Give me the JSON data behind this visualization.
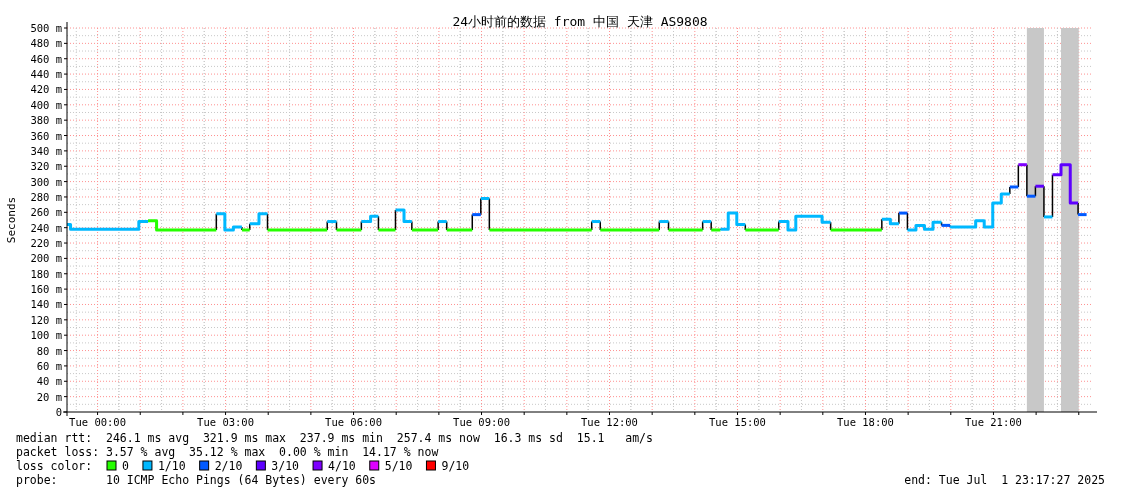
{
  "chart_data": {
    "type": "step",
    "title": "24小时前的数据 from 中国 天津 AS9808",
    "ylabel": "Seconds",
    "legend_title": "loss color:",
    "legend": "bottom",
    "grid": true,
    "xlim": [
      "2025-06-30T23:17",
      "2025-07-01T23:20"
    ],
    "ylim": [
      0,
      500
    ],
    "xticks": [
      {
        "value": "2025-07-01T00:00",
        "label": "Tue 00:00"
      },
      {
        "value": "2025-07-01T01:00",
        "label": null
      },
      {
        "value": "2025-07-01T02:00",
        "label": null
      },
      {
        "value": "2025-07-01T03:00",
        "label": "Tue 03:00"
      },
      {
        "value": "2025-07-01T04:00",
        "label": null
      },
      {
        "value": "2025-07-01T05:00",
        "label": null
      },
      {
        "value": "2025-07-01T06:00",
        "label": "Tue 06:00"
      },
      {
        "value": "2025-07-01T07:00",
        "label": null
      },
      {
        "value": "2025-07-01T08:00",
        "label": null
      },
      {
        "value": "2025-07-01T09:00",
        "label": "Tue 09:00"
      },
      {
        "value": "2025-07-01T10:00",
        "label": null
      },
      {
        "value": "2025-07-01T11:00",
        "label": null
      },
      {
        "value": "2025-07-01T12:00",
        "label": "Tue 12:00"
      },
      {
        "value": "2025-07-01T13:00",
        "label": null
      },
      {
        "value": "2025-07-01T14:00",
        "label": null
      },
      {
        "value": "2025-07-01T15:00",
        "label": "Tue 15:00"
      },
      {
        "value": "2025-07-01T16:00",
        "label": null
      },
      {
        "value": "2025-07-01T17:00",
        "label": null
      },
      {
        "value": "2025-07-01T18:00",
        "label": "Tue 18:00"
      },
      {
        "value": "2025-07-01T19:00",
        "label": null
      },
      {
        "value": "2025-07-01T20:00",
        "label": null
      },
      {
        "value": "2025-07-01T21:00",
        "label": "Tue 21:00"
      },
      {
        "value": "2025-07-01T22:00",
        "label": null
      },
      {
        "value": "2025-07-01T23:00",
        "label": null
      }
    ],
    "yticks": [
      0,
      {
        "value": 20,
        "label": "20 m"
      },
      {
        "value": 40,
        "label": "40 m"
      },
      {
        "value": 60,
        "label": "60 m"
      },
      {
        "value": 80,
        "label": "80 m"
      },
      {
        "value": 100,
        "label": "100 m"
      },
      {
        "value": 120,
        "label": "120 m"
      },
      {
        "value": 140,
        "label": "140 m"
      },
      {
        "value": 160,
        "label": "160 m"
      },
      {
        "value": 180,
        "label": "180 m"
      },
      {
        "value": 200,
        "label": "200 m"
      },
      {
        "value": 220,
        "label": "220 m"
      },
      {
        "value": 240,
        "label": "240 m"
      },
      {
        "value": 260,
        "label": "260 m"
      },
      {
        "value": 280,
        "label": "280 m"
      },
      {
        "value": 300,
        "label": "300 m"
      },
      {
        "value": 320,
        "label": "320 m"
      },
      {
        "value": 340,
        "label": "340 m"
      },
      {
        "value": 360,
        "label": "360 m"
      },
      {
        "value": 380,
        "label": "380 m"
      },
      {
        "value": 400,
        "label": "400 m"
      },
      {
        "value": 420,
        "label": "420 m"
      },
      {
        "value": 440,
        "label": "440 m"
      },
      {
        "value": 460,
        "label": "460 m"
      },
      {
        "value": 480,
        "label": "480 m"
      },
      {
        "value": 500,
        "label": "500 m"
      }
    ],
    "bands": [
      {
        "axis": "x",
        "from": "2025-07-01T21:47",
        "to": "2025-07-01T22:11",
        "color": "#c8c8c8"
      },
      {
        "axis": "x",
        "from": "2025-07-01T22:35",
        "to": "2025-07-01T23:00",
        "color": "#c8c8c8"
      }
    ],
    "series": [
      {
        "name": "0",
        "color": "#26ff00"
      },
      {
        "name": "1/10",
        "color": "#00b8ff"
      },
      {
        "name": "2/10",
        "color": "#0059ff"
      },
      {
        "name": "3/10",
        "color": "#5e00ff"
      },
      {
        "name": "4/10",
        "color": "#7e00ff"
      },
      {
        "name": "5/10",
        "color": "#dd00ff"
      },
      {
        "name": "9/10",
        "color": "#ff0000"
      },
      {
        "color": "#00b8ff",
        "x": [
          "2025-06-30T23:17",
          "2025-06-30T23:22",
          "2025-07-01T00:58",
          "2025-07-01T01:11"
        ],
        "values": [
          244,
          238,
          248,
          248
        ]
      },
      {
        "color": "#26ff00",
        "x": [
          "2025-07-01T01:11",
          "2025-07-01T01:23",
          "2025-07-01T02:47"
        ],
        "values": [
          249,
          237,
          237
        ]
      },
      {
        "color": "#00b8ff",
        "x": [
          "2025-07-01T02:47",
          "2025-07-01T02:59",
          "2025-07-01T03:11",
          "2025-07-01T03:23"
        ],
        "values": [
          258,
          237,
          241,
          241
        ]
      },
      {
        "color": "#26ff00",
        "x": [
          "2025-07-01T03:23",
          "2025-07-01T03:34"
        ],
        "values": [
          237,
          237
        ]
      },
      {
        "color": "#00b8ff",
        "x": [
          "2025-07-01T03:34",
          "2025-07-01T03:47",
          "2025-07-01T03:59"
        ],
        "values": [
          245,
          258,
          258
        ]
      },
      {
        "color": "#26ff00",
        "x": [
          "2025-07-01T03:59",
          "2025-07-01T05:23"
        ],
        "values": [
          237,
          237
        ]
      },
      {
        "color": "#00b8ff",
        "x": [
          "2025-07-01T05:23",
          "2025-07-01T05:36"
        ],
        "values": [
          248,
          248
        ]
      },
      {
        "color": "#26ff00",
        "x": [
          "2025-07-01T05:36",
          "2025-07-01T06:11"
        ],
        "values": [
          237,
          237
        ]
      },
      {
        "color": "#00b8ff",
        "x": [
          "2025-07-01T06:11",
          "2025-07-01T06:24",
          "2025-07-01T06:35"
        ],
        "values": [
          248,
          255,
          255
        ]
      },
      {
        "color": "#26ff00",
        "x": [
          "2025-07-01T06:35",
          "2025-07-01T06:59"
        ],
        "values": [
          237,
          237
        ]
      },
      {
        "color": "#00b8ff",
        "x": [
          "2025-07-01T06:59",
          "2025-07-01T07:11",
          "2025-07-01T07:22"
        ],
        "values": [
          263,
          248,
          248
        ]
      },
      {
        "color": "#26ff00",
        "x": [
          "2025-07-01T07:22",
          "2025-07-01T07:59"
        ],
        "values": [
          237,
          237
        ]
      },
      {
        "color": "#00b8ff",
        "x": [
          "2025-07-01T07:59",
          "2025-07-01T08:11"
        ],
        "values": [
          248,
          248
        ]
      },
      {
        "color": "#26ff00",
        "x": [
          "2025-07-01T08:11",
          "2025-07-01T08:47"
        ],
        "values": [
          237,
          237
        ]
      },
      {
        "color": "#0059ff",
        "x": [
          "2025-07-01T08:47",
          "2025-07-01T08:59"
        ],
        "values": [
          257,
          257
        ]
      },
      {
        "color": "#00b8ff",
        "x": [
          "2025-07-01T08:59",
          "2025-07-01T09:11"
        ],
        "values": [
          278,
          278
        ]
      },
      {
        "color": "#26ff00",
        "x": [
          "2025-07-01T09:11",
          "2025-07-01T11:35"
        ],
        "values": [
          237,
          237
        ]
      },
      {
        "color": "#00b8ff",
        "x": [
          "2025-07-01T11:35",
          "2025-07-01T11:47"
        ],
        "values": [
          248,
          248
        ]
      },
      {
        "color": "#26ff00",
        "x": [
          "2025-07-01T11:47",
          "2025-07-01T13:10"
        ],
        "values": [
          237,
          237
        ]
      },
      {
        "color": "#00b8ff",
        "x": [
          "2025-07-01T13:10",
          "2025-07-01T13:23"
        ],
        "values": [
          248,
          248
        ]
      },
      {
        "color": "#26ff00",
        "x": [
          "2025-07-01T13:23",
          "2025-07-01T14:11"
        ],
        "values": [
          237,
          237
        ]
      },
      {
        "color": "#00b8ff",
        "x": [
          "2025-07-01T14:11",
          "2025-07-01T14:23"
        ],
        "values": [
          248,
          248
        ]
      },
      {
        "color": "#26ff00",
        "x": [
          "2025-07-01T14:23",
          "2025-07-01T14:36"
        ],
        "values": [
          237,
          237
        ]
      },
      {
        "color": "#00b8ff",
        "x": [
          "2025-07-01T14:36",
          "2025-07-01T14:47",
          "2025-07-01T14:59",
          "2025-07-01T15:11"
        ],
        "values": [
          238,
          259,
          244,
          244
        ]
      },
      {
        "color": "#26ff00",
        "x": [
          "2025-07-01T15:11",
          "2025-07-01T15:58"
        ],
        "values": [
          237,
          237
        ]
      },
      {
        "color": "#00b8ff",
        "x": [
          "2025-07-01T15:58",
          "2025-07-01T16:11",
          "2025-07-01T16:22",
          "2025-07-01T16:59",
          "2025-07-01T17:11"
        ],
        "values": [
          248,
          237,
          255,
          247,
          247
        ]
      },
      {
        "color": "#26ff00",
        "x": [
          "2025-07-01T17:11",
          "2025-07-01T18:23"
        ],
        "values": [
          237,
          237
        ]
      },
      {
        "color": "#00b8ff",
        "x": [
          "2025-07-01T18:23",
          "2025-07-01T18:35",
          "2025-07-01T18:47"
        ],
        "values": [
          251,
          245,
          245
        ]
      },
      {
        "color": "#0059ff",
        "x": [
          "2025-07-01T18:47",
          "2025-07-01T18:59"
        ],
        "values": [
          259,
          259
        ]
      },
      {
        "color": "#00b8ff",
        "x": [
          "2025-07-01T18:59",
          "2025-07-01T19:11",
          "2025-07-01T19:23",
          "2025-07-01T19:35",
          "2025-07-01T19:47"
        ],
        "values": [
          237,
          243,
          238,
          247,
          247
        ]
      },
      {
        "color": "#0059ff",
        "x": [
          "2025-07-01T19:47",
          "2025-07-01T19:59"
        ],
        "values": [
          243,
          243
        ]
      },
      {
        "color": "#00b8ff",
        "x": [
          "2025-07-01T19:59",
          "2025-07-01T20:35",
          "2025-07-01T20:47",
          "2025-07-01T20:59",
          "2025-07-01T21:11",
          "2025-07-01T21:23"
        ],
        "values": [
          241,
          249,
          241,
          272,
          284,
          284
        ]
      },
      {
        "color": "#0059ff",
        "x": [
          "2025-07-01T21:23",
          "2025-07-01T21:35"
        ],
        "values": [
          293,
          293
        ]
      },
      {
        "color": "#7e00ff",
        "x": [
          "2025-07-01T21:35",
          "2025-07-01T21:47"
        ],
        "values": [
          322,
          322
        ]
      },
      {
        "color": "#0059ff",
        "x": [
          "2025-07-01T21:47",
          "2025-07-01T21:59"
        ],
        "values": [
          281,
          281
        ]
      },
      {
        "color": "#5e00ff",
        "x": [
          "2025-07-01T21:59",
          "2025-07-01T22:11"
        ],
        "values": [
          294,
          294
        ]
      },
      {
        "color": "#00b8ff",
        "x": [
          "2025-07-01T22:11",
          "2025-07-01T22:23"
        ],
        "values": [
          254,
          254
        ]
      },
      {
        "color": "#5e00ff",
        "x": [
          "2025-07-01T22:23",
          "2025-07-01T22:35",
          "2025-07-01T22:48",
          "2025-07-01T22:59"
        ],
        "values": [
          309,
          322,
          272,
          272
        ]
      },
      {
        "color": "#0059ff",
        "x": [
          "2025-07-01T22:59",
          "2025-07-01T23:11"
        ],
        "values": [
          257,
          257
        ]
      }
    ],
    "annotations": [
      "median rtt:  246.1 ms avg  321.9 ms max  237.9 ms min  257.4 ms now  16.3 ms sd  15.1   am/s",
      "packet loss: 3.57 % avg  35.12 % max  0.00 % min  14.17 % now",
      "probe:       10 ICMP Echo Pings (64 Bytes) every 60s",
      "end: Tue Jul  1 23:17:27 2025"
    ]
  }
}
